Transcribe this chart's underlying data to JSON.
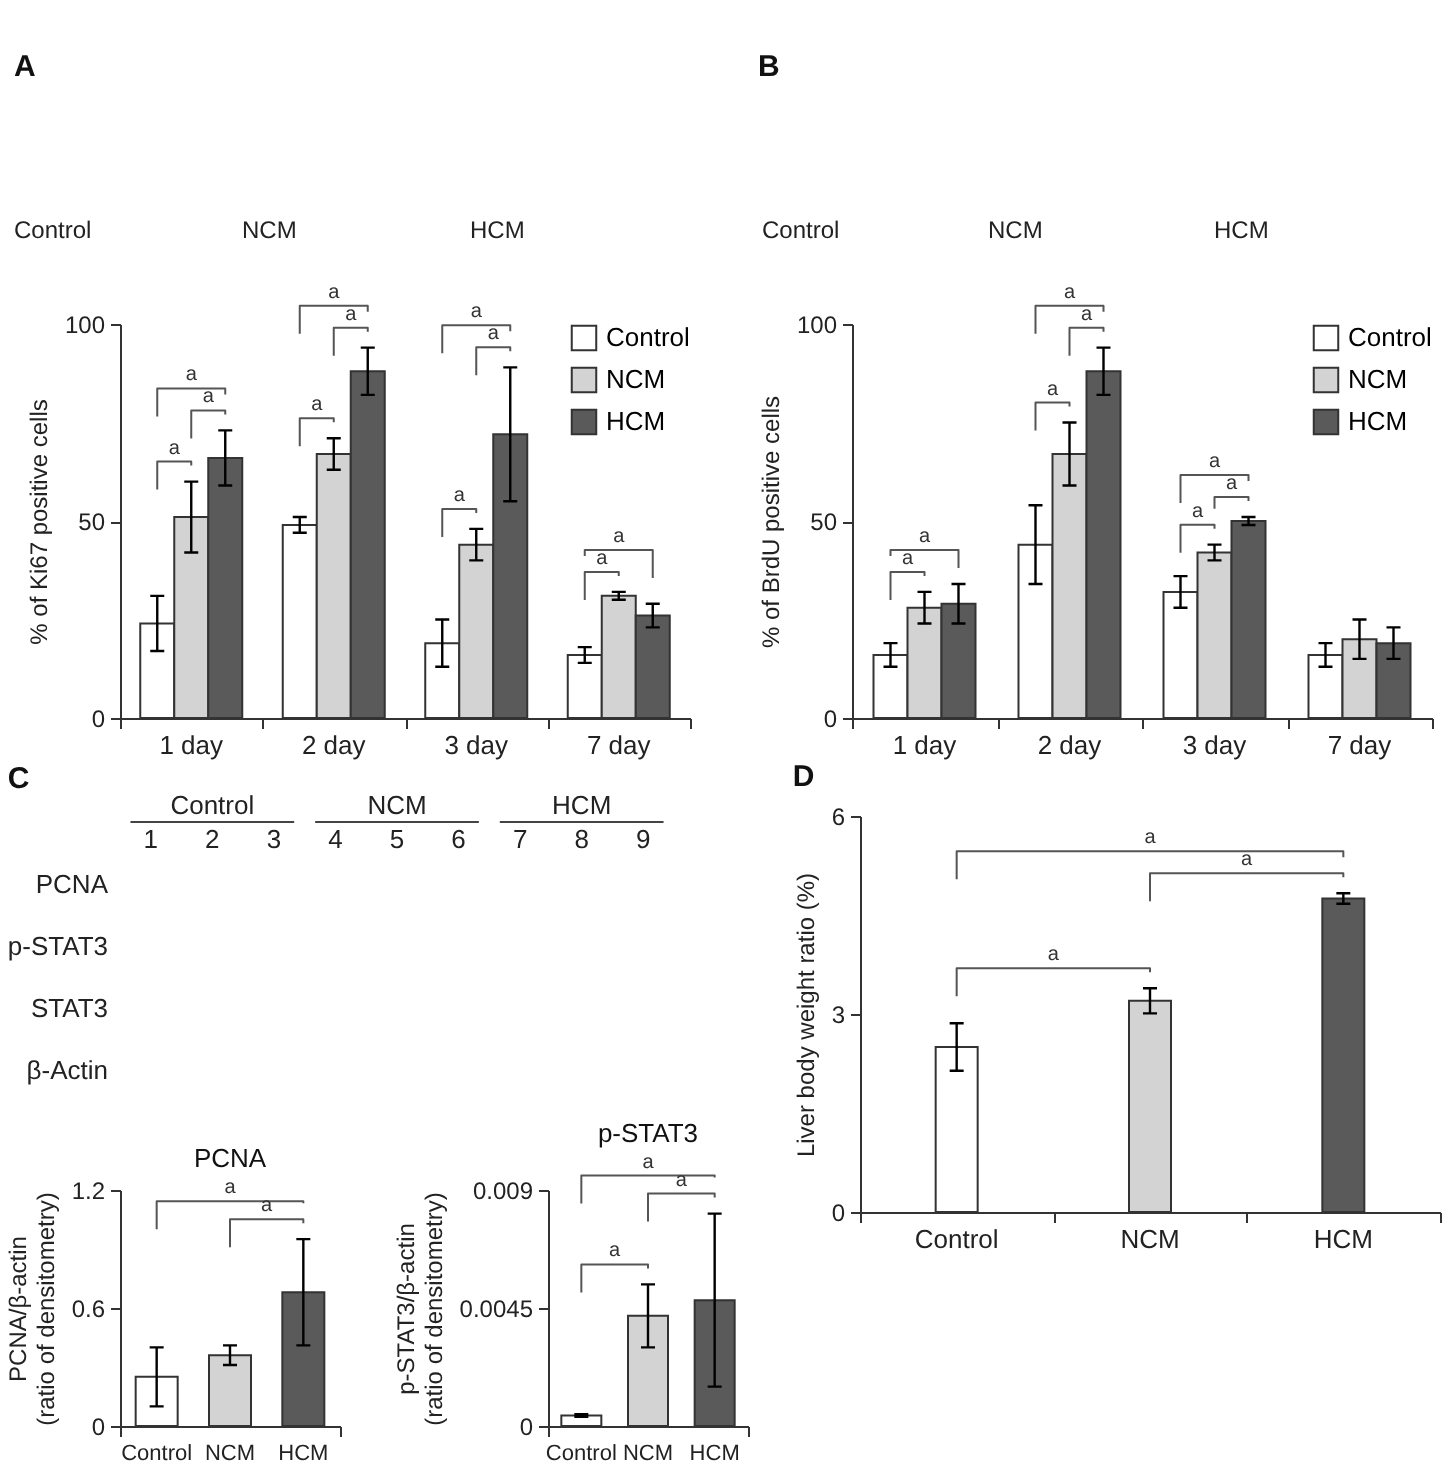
{
  "chart_data": [
    {
      "type": "bar",
      "title": "A",
      "ylabel": "% of Ki67 positive cells",
      "categories": [
        "1 day",
        "2 day",
        "3 day",
        "7 day"
      ],
      "series": [
        {
          "name": "Control",
          "color": "#ffffff",
          "values": [
            24,
            49,
            19,
            16
          ],
          "errors": [
            7,
            2,
            6,
            2
          ]
        },
        {
          "name": "NCM",
          "color": "#d3d3d3",
          "values": [
            51,
            67,
            44,
            31
          ],
          "errors": [
            9,
            4,
            4,
            1
          ]
        },
        {
          "name": "HCM",
          "color": "#5a5a5a",
          "values": [
            66,
            88,
            72,
            26
          ],
          "errors": [
            7,
            6,
            17,
            3
          ]
        }
      ],
      "ylim": [
        0,
        100
      ],
      "yticks": [
        0,
        50,
        100
      ],
      "legend": "top right",
      "annotations": [
        "Control",
        "NCM",
        "HCM",
        "a",
        "a",
        "a",
        "a",
        "a",
        "a",
        "a",
        "a",
        "a",
        "a",
        "a"
      ]
    },
    {
      "type": "bar",
      "title": "B",
      "ylabel": "% of BrdU positive cells",
      "categories": [
        "1 day",
        "2 day",
        "3 day",
        "7 day"
      ],
      "series": [
        {
          "name": "Control",
          "color": "#ffffff",
          "values": [
            16,
            44,
            32,
            16
          ],
          "errors": [
            3,
            10,
            4,
            3
          ]
        },
        {
          "name": "NCM",
          "color": "#d3d3d3",
          "values": [
            28,
            67,
            42,
            20
          ],
          "errors": [
            4,
            8,
            2,
            5
          ]
        },
        {
          "name": "HCM",
          "color": "#5a5a5a",
          "values": [
            29,
            88,
            50,
            19
          ],
          "errors": [
            5,
            6,
            1,
            4
          ]
        }
      ],
      "ylim": [
        0,
        100
      ],
      "yticks": [
        0,
        50,
        100
      ],
      "legend": "top right",
      "annotations": [
        "Control",
        "NCM",
        "HCM",
        "a",
        "a",
        "a",
        "a",
        "a",
        "a",
        "a",
        "a"
      ]
    },
    {
      "type": "heatmap",
      "title": "C",
      "categories": [
        "1",
        "2",
        "3",
        "4",
        "5",
        "6",
        "7",
        "8",
        "9"
      ],
      "y_categories": [
        "PCNA",
        "p-STAT3",
        "STAT3",
        "β-Actin"
      ],
      "cells": [
        [
          null,
          null,
          null,
          null,
          null,
          null,
          null,
          null,
          null
        ],
        [
          null,
          null,
          null,
          null,
          null,
          null,
          null,
          null,
          null
        ],
        [
          null,
          null,
          null,
          null,
          null,
          null,
          null,
          null,
          null
        ],
        [
          null,
          null,
          null,
          null,
          null,
          null,
          null,
          null,
          null
        ]
      ],
      "annotations": [
        "Control",
        "NCM",
        "HCM"
      ]
    },
    {
      "type": "bar",
      "title": "PCNA",
      "ylabel": "PCNA/β-actin\n(ratio of densitometry)",
      "categories": [
        "Control",
        "NCM",
        "HCM"
      ],
      "values": [
        0.25,
        0.36,
        0.68
      ],
      "errors": [
        0.15,
        0.05,
        0.27
      ],
      "colors": [
        "#ffffff",
        "#d3d3d3",
        "#5a5a5a"
      ],
      "ylim": [
        0,
        1.2
      ],
      "yticks": [
        0,
        0.6,
        1.2
      ],
      "annotations": [
        "a",
        "a"
      ]
    },
    {
      "type": "bar",
      "title": "p-STAT3",
      "ylabel": "p-STAT3/β-actin\n(ratio of densitometry)",
      "categories": [
        "Control",
        "NCM",
        "HCM"
      ],
      "values": [
        0.0004,
        0.0042,
        0.0048
      ],
      "errors": [
        5e-05,
        0.0012,
        0.0033
      ],
      "colors": [
        "#ffffff",
        "#d3d3d3",
        "#5a5a5a"
      ],
      "ylim": [
        0,
        0.009
      ],
      "yticks": [
        0,
        0.0045,
        0.009
      ],
      "annotations": [
        "a",
        "a",
        "a"
      ]
    },
    {
      "type": "bar",
      "title": "D",
      "ylabel": "Liver body weight ratio (%)",
      "categories": [
        "Control",
        "NCM",
        "HCM"
      ],
      "values": [
        2.5,
        3.2,
        4.75
      ],
      "errors": [
        0.36,
        0.19,
        0.08
      ],
      "colors": [
        "#ffffff",
        "#d3d3d3",
        "#5a5a5a"
      ],
      "ylim": [
        0,
        6
      ],
      "yticks": [
        0,
        3,
        6
      ],
      "annotations": [
        "a",
        "a",
        "a"
      ]
    }
  ]
}
